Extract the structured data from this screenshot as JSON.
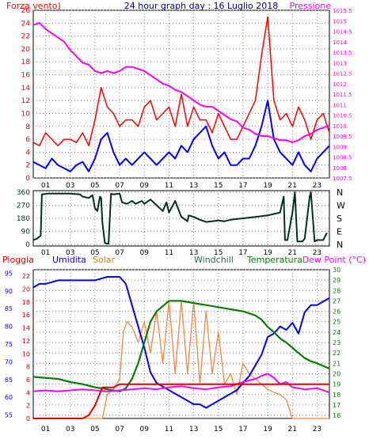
{
  "header": {
    "title": "24 hour graph day : 16 Luglio 2018",
    "left_label": "Forza vento)",
    "right_label": "Pressione"
  },
  "compass": [
    "N",
    "W",
    "S",
    "E",
    "N"
  ],
  "bottom_labels": {
    "rain": "Pioggia",
    "humidity": "Umidita",
    "solar": "Solar",
    "windchill": "Windchill",
    "temperature": "Temperatura",
    "dewpoint": "Dew Point (°C)"
  },
  "colors": {
    "wind": "#ff0000",
    "wind_avg": "#0000ff",
    "pressure": "#ff00ff",
    "direction": "#003020",
    "rain": "#dd0000",
    "humidity": "#0000ff",
    "solar": "#f08844",
    "windchill": "#006000",
    "temperature": "#008000",
    "dewpoint": "#ff00ff",
    "title": "#000080",
    "axis": "#000000",
    "grid": "#808080"
  },
  "chart_data": [
    {
      "type": "line",
      "title": "24 hour graph day : 16 Luglio 2018",
      "x_ticks": [
        "01",
        "03",
        "05",
        "07",
        "09",
        "11",
        "13",
        "15",
        "17",
        "19",
        "21",
        "23"
      ],
      "y_left_ticks": [
        "0",
        "2",
        "4",
        "6",
        "8",
        "10",
        "12",
        "14",
        "16",
        "18",
        "20",
        "22",
        "24",
        "26"
      ],
      "y_left_range": [
        0,
        26
      ],
      "y_right_ticks": [
        "1007.5",
        "1008",
        "1008.5",
        "1009",
        "1009.5",
        "1010",
        "1010.5",
        "1011",
        "1011.5",
        "1012",
        "1012.5",
        "1013",
        "1013.5",
        "1014",
        "1014.5",
        "1015",
        "1015.5"
      ],
      "y_right_range": [
        1007.5,
        1015.5
      ],
      "series": [
        {
          "name": "Forza vento)",
          "axis": "left",
          "x": [
            0,
            0.5,
            1,
            1.5,
            2,
            2.5,
            3,
            3.5,
            4,
            4.5,
            5,
            5.5,
            6,
            6.5,
            7,
            7.5,
            8,
            8.5,
            9,
            9.5,
            10,
            10.5,
            11,
            11.5,
            12,
            12.5,
            13,
            13.5,
            14,
            14.5,
            15,
            15.5,
            16,
            16.5,
            17,
            17.5,
            18,
            18.5,
            19,
            19.5,
            20,
            20.5,
            21,
            21.5,
            22,
            22.5,
            23,
            23.5,
            24
          ],
          "values": [
            5.5,
            5,
            7,
            6,
            5,
            6,
            6,
            5.5,
            7,
            5,
            9,
            14,
            11,
            10,
            8,
            9,
            9,
            8,
            11,
            12,
            9,
            10,
            11,
            8,
            13,
            8,
            11,
            9,
            9,
            7,
            10,
            8,
            6,
            6,
            8,
            10,
            12,
            19,
            25,
            12,
            9,
            10,
            8,
            11,
            9,
            6,
            9,
            10,
            7
          ]
        },
        {
          "name": "wind average",
          "axis": "left",
          "x": [
            0,
            0.5,
            1,
            1.5,
            2,
            2.5,
            3,
            3.5,
            4,
            4.5,
            5,
            5.5,
            6,
            6.5,
            7,
            7.5,
            8,
            8.5,
            9,
            9.5,
            10,
            10.5,
            11,
            11.5,
            12,
            12.5,
            13,
            13.5,
            14,
            14.5,
            15,
            15.5,
            16,
            16.5,
            17,
            17.5,
            18,
            18.5,
            19,
            19.5,
            20,
            20.5,
            21,
            21.5,
            22,
            22.5,
            23,
            23.5,
            24
          ],
          "values": [
            2.5,
            2,
            1.5,
            3,
            2,
            1.5,
            1,
            2,
            2.5,
            1,
            3,
            6,
            7,
            4,
            2,
            3,
            2,
            3,
            4,
            3,
            2,
            3,
            4,
            3,
            5,
            4,
            6,
            7,
            8,
            5,
            3,
            4,
            2,
            2,
            3,
            3,
            5,
            8,
            12,
            6,
            4,
            3,
            2,
            4,
            2,
            1,
            3,
            4,
            5
          ]
        },
        {
          "name": "Pressione",
          "axis": "right",
          "x": [
            0,
            0.5,
            1,
            1.5,
            2,
            2.5,
            3,
            3.5,
            4,
            4.5,
            5,
            5.5,
            6,
            6.5,
            7,
            7.5,
            8,
            8.5,
            9,
            9.5,
            10,
            10.5,
            11,
            11.5,
            12,
            12.5,
            13,
            13.5,
            14,
            14.5,
            15,
            15.5,
            16,
            16.5,
            17,
            17.5,
            18,
            18.5,
            19,
            19.5,
            20,
            20.5,
            21,
            21.5,
            22,
            22.5,
            23,
            23.5,
            24
          ],
          "values": [
            1014.8,
            1014.9,
            1014.6,
            1014.4,
            1014.2,
            1014.0,
            1013.6,
            1013.3,
            1013.0,
            1012.9,
            1012.6,
            1012.5,
            1012.6,
            1012.5,
            1012.6,
            1012.8,
            1012.8,
            1012.7,
            1012.6,
            1012.4,
            1012.2,
            1012.0,
            1011.9,
            1011.7,
            1011.6,
            1011.4,
            1011.2,
            1011.0,
            1010.9,
            1010.9,
            1010.7,
            1010.5,
            1010.3,
            1010.2,
            1009.9,
            1009.8,
            1009.6,
            1009.5,
            1009.5,
            1009.4,
            1009.3,
            1009.3,
            1009.2,
            1009.3,
            1009.5,
            1009.6,
            1009.8,
            1009.9,
            1010.0
          ]
        }
      ]
    },
    {
      "type": "line",
      "x_ticks": [
        "01",
        "03",
        "05",
        "07",
        "09",
        "11",
        "13",
        "15",
        "17",
        "19",
        "21",
        "23"
      ],
      "y_ticks": [
        "0",
        "90",
        "180",
        "270",
        "360"
      ],
      "y_range": [
        0,
        360
      ],
      "series": [
        {
          "name": "wind direction",
          "x": [
            0,
            0.3,
            0.6,
            0.7,
            1.2,
            2,
            3,
            3.8,
            4,
            4.5,
            4.8,
            5,
            5.2,
            5.4,
            5.5,
            5.6,
            5.8,
            6,
            6.1,
            6.3,
            6.5,
            7,
            7.2,
            7.6,
            8,
            8.3,
            8.8,
            9,
            9.5,
            10,
            10.5,
            10.8,
            11,
            11.5,
            12,
            12.5,
            12.6,
            13,
            13.5,
            14,
            14.5,
            15,
            15.5,
            16,
            17,
            18,
            19,
            19.5,
            20,
            20.3,
            20.4,
            20.6,
            21,
            21.2,
            21.4,
            21.8,
            22,
            22.4,
            22.5,
            22.8,
            23,
            23.5,
            23.8
          ],
          "values": [
            30,
            40,
            60,
            345,
            350,
            350,
            350,
            345,
            330,
            320,
            340,
            250,
            230,
            330,
            320,
            150,
            10,
            5,
            5,
            350,
            345,
            350,
            290,
            280,
            300,
            280,
            300,
            280,
            310,
            270,
            230,
            290,
            220,
            300,
            190,
            160,
            200,
            190,
            170,
            155,
            160,
            165,
            160,
            170,
            180,
            190,
            200,
            210,
            220,
            330,
            30,
            30,
            220,
            360,
            20,
            20,
            40,
            330,
            360,
            20,
            30,
            30,
            80
          ]
        }
      ]
    },
    {
      "type": "line",
      "x_ticks": [
        "01",
        "03",
        "05",
        "07",
        "09",
        "11",
        "13",
        "15",
        "17",
        "19",
        "21",
        "23"
      ],
      "y_left_outer_ticks": [
        "0",
        "2",
        "4",
        "6",
        "8",
        "10",
        "12",
        "14",
        "16",
        "18",
        "20",
        "22"
      ],
      "y_left_inner_ticks": [
        "55",
        "60",
        "65",
        "70",
        "75",
        "80",
        "85",
        "90",
        "95"
      ],
      "y_right_ticks": [
        "16",
        "17",
        "18",
        "19",
        "20",
        "21",
        "22",
        "23",
        "24",
        "25",
        "26",
        "27",
        "28",
        "29",
        "30"
      ],
      "rain_range": [
        0,
        23
      ],
      "humidity_range": [
        54,
        96
      ],
      "temperature_range": [
        15.7,
        30
      ],
      "series": [
        {
          "name": "Pioggia",
          "axis": "rain",
          "x": [
            0,
            4,
            4.5,
            5,
            5.6,
            6,
            6.5,
            7,
            10,
            15,
            20,
            23.5,
            24
          ],
          "values": [
            0,
            0,
            0.5,
            2,
            4.8,
            4.8,
            4.8,
            5.3,
            5.3,
            5.3,
            5.3,
            5.3,
            5.3
          ]
        },
        {
          "name": "Umidita",
          "axis": "humidity",
          "x": [
            0,
            0.5,
            1,
            2,
            3,
            4,
            5,
            6,
            6.5,
            7,
            7.5,
            8,
            8.5,
            9,
            9.5,
            10,
            10.5,
            11,
            11.5,
            12,
            12.5,
            13,
            13.5,
            14,
            14.5,
            15,
            15.5,
            16,
            16.5,
            17,
            17.5,
            18,
            18.5,
            19,
            19.5,
            20,
            20.5,
            21,
            21.5,
            22,
            22.5,
            23,
            23.5,
            24
          ],
          "values": [
            91,
            92,
            92,
            93,
            93,
            93,
            93,
            94,
            94,
            94,
            92,
            86,
            80,
            74,
            67,
            64,
            63,
            62,
            61,
            60,
            59,
            58,
            58,
            57,
            58,
            59,
            60,
            61,
            62,
            64,
            66,
            69,
            72,
            77,
            78,
            80,
            79,
            81,
            78,
            84,
            86,
            86,
            87,
            88
          ]
        },
        {
          "name": "Solar",
          "axis": "temperature",
          "x": [
            0,
            5.6,
            6,
            6.5,
            7,
            7.3,
            7.6,
            8,
            8.5,
            9,
            9.5,
            10,
            10.5,
            11,
            11.5,
            12,
            12.5,
            13,
            13.5,
            14,
            14.5,
            15,
            15.5,
            16,
            16.5,
            17,
            17.5,
            18,
            18.5,
            19,
            19.5,
            20,
            20.5,
            21,
            21.5,
            24
          ],
          "values": [
            15.7,
            15.7,
            18,
            18.5,
            19.5,
            24,
            25,
            24.5,
            23,
            25,
            22,
            26,
            21,
            27,
            20,
            27,
            20,
            27,
            19,
            26,
            20,
            24,
            19,
            20,
            18,
            21,
            20,
            19.5,
            19,
            18.5,
            18.2,
            18,
            17.5,
            15.7,
            15.7,
            15.7
          ]
        },
        {
          "name": "Windchill",
          "axis": "temperature",
          "x": [
            0,
            1,
            2,
            3,
            4,
            5,
            6,
            7,
            7.5,
            8,
            8.5,
            9,
            9.5,
            10,
            10.5,
            11,
            12,
            13,
            14,
            15,
            16,
            17,
            18,
            18.5,
            19,
            19.5,
            20,
            20.5,
            21,
            21.5,
            22,
            22.5,
            23,
            24
          ],
          "values": [
            19.7,
            19.6,
            19.5,
            19.2,
            19,
            18.7,
            18.5,
            18.3,
            18.6,
            19.5,
            21,
            23,
            25,
            26,
            26.5,
            27,
            27,
            26.8,
            26.6,
            26.4,
            26.2,
            26,
            25.6,
            25.2,
            24.5,
            24,
            23.4,
            23,
            22.5,
            22,
            21.5,
            21.2,
            21,
            20.5
          ]
        },
        {
          "name": "Temperatura",
          "axis": "temperature",
          "x": [
            0,
            1,
            2,
            3,
            4,
            5,
            6,
            7,
            7.5,
            8,
            8.5,
            9,
            9.5,
            10,
            10.5,
            11,
            12,
            13,
            14,
            15,
            16,
            17,
            18,
            18.5,
            19,
            19.5,
            20,
            20.5,
            21,
            21.5,
            22,
            22.5,
            23,
            24
          ],
          "values": [
            19.7,
            19.6,
            19.5,
            19.2,
            19,
            18.7,
            18.5,
            18.3,
            18.6,
            19.5,
            21,
            23,
            25,
            26,
            26.5,
            27,
            27,
            26.8,
            26.6,
            26.4,
            26.2,
            26,
            25.6,
            25.2,
            24.5,
            24,
            23.4,
            23,
            22.5,
            22,
            21.5,
            21.2,
            21,
            20.5
          ]
        },
        {
          "name": "Dew Point (°C)",
          "axis": "temperature",
          "x": [
            0,
            1,
            2,
            3,
            4,
            5,
            6,
            7,
            8,
            9,
            10,
            11,
            12,
            13,
            14,
            15,
            16,
            17,
            18,
            18.5,
            19,
            19.5,
            20,
            20.5,
            21,
            22,
            23,
            24
          ],
          "values": [
            18.3,
            18.4,
            18.3,
            18.4,
            18.5,
            18.4,
            18.3,
            18.4,
            18.5,
            18.6,
            18.5,
            18.7,
            18.8,
            18.6,
            18.5,
            18.7,
            18.8,
            19.2,
            19.5,
            19.8,
            20.0,
            19.6,
            19.0,
            19.2,
            18.7,
            18.5,
            18.6,
            18.2
          ]
        }
      ]
    }
  ]
}
